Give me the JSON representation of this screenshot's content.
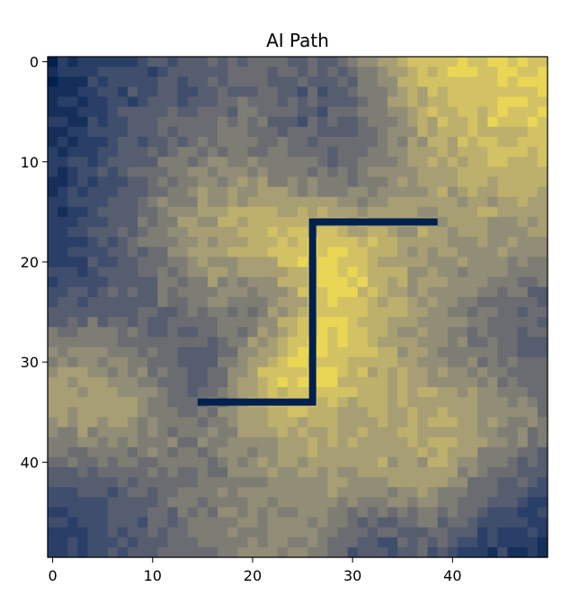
{
  "title": "AI Path",
  "chart_data": {
    "type": "heatmap",
    "title": "AI Path",
    "grid_size": [
      50,
      50
    ],
    "colormap": "cividis",
    "xlim": [
      -0.5,
      49.5
    ],
    "ylim": [
      49.5,
      -0.5
    ],
    "x_ticks": [
      0,
      10,
      20,
      30,
      40
    ],
    "y_ticks": [
      0,
      10,
      20,
      30,
      40
    ],
    "grid": false,
    "blobs": [
      {
        "cx": 2,
        "cy": 2,
        "r": 9,
        "v": 0.05
      },
      {
        "cx": 0,
        "cy": 18,
        "r": 8,
        "v": 0.08
      },
      {
        "cx": 47,
        "cy": 47,
        "r": 6,
        "v": 0.1
      },
      {
        "cx": 2,
        "cy": 46,
        "r": 5,
        "v": 0.15
      },
      {
        "cx": 10,
        "cy": 4,
        "r": 5,
        "v": 0.35
      },
      {
        "cx": 21,
        "cy": 3,
        "r": 6,
        "v": 0.45
      },
      {
        "cx": 30,
        "cy": 9,
        "r": 5,
        "v": 0.2
      },
      {
        "cx": 27,
        "cy": 4,
        "r": 3,
        "v": 0.15
      },
      {
        "cx": 12,
        "cy": 13,
        "r": 6,
        "v": 0.6
      },
      {
        "cx": 16,
        "cy": 17,
        "r": 5,
        "v": 0.85
      },
      {
        "cx": 5,
        "cy": 32,
        "r": 6,
        "v": 0.8
      },
      {
        "cx": 14,
        "cy": 30,
        "r": 4,
        "v": 0.2
      },
      {
        "cx": 27,
        "cy": 20,
        "r": 5,
        "v": 1.0
      },
      {
        "cx": 24,
        "cy": 31,
        "r": 4,
        "v": 0.98
      },
      {
        "cx": 40,
        "cy": 5,
        "r": 8,
        "v": 0.88
      },
      {
        "cx": 42,
        "cy": 15,
        "r": 5,
        "v": 0.6
      },
      {
        "cx": 38,
        "cy": 23,
        "r": 5,
        "v": 0.62
      },
      {
        "cx": 45,
        "cy": 28,
        "r": 5,
        "v": 0.25
      },
      {
        "cx": 40,
        "cy": 36,
        "r": 6,
        "v": 0.82
      },
      {
        "cx": 30,
        "cy": 40,
        "r": 6,
        "v": 0.65
      },
      {
        "cx": 20,
        "cy": 45,
        "r": 6,
        "v": 0.55
      },
      {
        "cx": 10,
        "cy": 45,
        "r": 5,
        "v": 0.35
      },
      {
        "cx": 32,
        "cy": 48,
        "r": 3,
        "v": 0.15
      },
      {
        "cx": 8,
        "cy": 23,
        "r": 4,
        "v": 0.3
      },
      {
        "cx": 21,
        "cy": 24,
        "r": 3,
        "v": 0.25
      }
    ],
    "path": {
      "color": "#00204d",
      "points": [
        [
          38.5,
          16
        ],
        [
          26,
          16
        ],
        [
          26,
          34
        ],
        [
          14.5,
          34
        ]
      ]
    }
  }
}
